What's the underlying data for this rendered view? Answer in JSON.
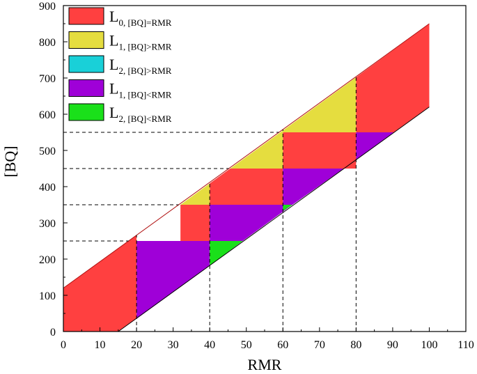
{
  "chart_data": {
    "type": "area",
    "xlabel": "RMR",
    "ylabel": "[BQ]",
    "xlim": [
      0,
      110
    ],
    "ylim": [
      0,
      900
    ],
    "xticks": [
      0,
      10,
      20,
      30,
      40,
      50,
      60,
      70,
      80,
      90,
      100,
      110
    ],
    "yticks": [
      0,
      100,
      200,
      300,
      400,
      500,
      600,
      700,
      800,
      900
    ],
    "grid": false,
    "legend_position": "top-left",
    "band": {
      "upper_line": [
        [
          0,
          120
        ],
        [
          100,
          850
        ]
      ],
      "lower_line": [
        [
          15,
          0
        ],
        [
          100,
          620
        ]
      ],
      "x_range": [
        0,
        100
      ]
    },
    "reference_lines": {
      "vertical_x": [
        20,
        40,
        60,
        80
      ],
      "horizontal_y": [
        250,
        350,
        450,
        550
      ]
    },
    "series": [
      {
        "name": "L0, [BQ]=RMR",
        "label_main": "L",
        "label_sub": "0, [BQ]=RMR",
        "color": "#ff4040",
        "regions": [
          [
            [
              0,
              120
            ],
            [
              20,
              266
            ],
            [
              20,
              35
            ],
            [
              15,
              0
            ],
            [
              0,
              0
            ]
          ],
          [
            [
              20,
              266
            ],
            [
              20,
              250
            ],
            [
              32,
              250
            ],
            [
              32,
              350
            ],
            [
              40,
              350
            ],
            [
              40,
              250
            ],
            [
              20,
              250
            ]
          ],
          [
            [
              40,
              350
            ],
            [
              40,
              409
            ],
            [
              45.6,
              450
            ],
            [
              60,
              450
            ],
            [
              60,
              350
            ]
          ],
          [
            [
              60,
              450
            ],
            [
              60,
              550
            ],
            [
              80,
              550
            ],
            [
              80,
              450
            ],
            [
              76.6,
              450
            ]
          ],
          [
            [
              80,
              702
            ],
            [
              100,
              850
            ],
            [
              100,
              620
            ],
            [
              80,
              474
            ]
          ]
        ]
      },
      {
        "name": "L1, [BQ]>RMR",
        "label_main": "L",
        "label_sub": "1, [BQ]>RMR",
        "color": "#e5dd3f",
        "regions": [
          [
            [
              32,
              350
            ],
            [
              40,
              350
            ],
            [
              40,
              409
            ]
          ],
          [
            [
              45.6,
              450
            ],
            [
              60,
              450
            ],
            [
              60,
              555
            ]
          ],
          [
            [
              60,
              555
            ],
            [
              60,
              550
            ],
            [
              80,
              550
            ],
            [
              80,
              702
            ]
          ]
        ]
      },
      {
        "name": "L2, [BQ]>RMR",
        "label_main": "L",
        "label_sub": "2, [BQ]>RMR",
        "color": "#19d0d8",
        "regions": []
      },
      {
        "name": "L1, [BQ]<RMR",
        "label_main": "L",
        "label_sub": "1, [BQ]<RMR",
        "color": "#9f00d8",
        "regions": [
          [
            [
              20,
              250
            ],
            [
              40,
              250
            ],
            [
              40,
              182
            ],
            [
              20,
              35
            ]
          ],
          [
            [
              40,
              350
            ],
            [
              40,
              250
            ],
            [
              49,
              250
            ],
            [
              62.6,
              350
            ]
          ],
          [
            [
              60,
              450
            ],
            [
              76.6,
              450
            ],
            [
              62.6,
              350
            ],
            [
              60,
              350
            ]
          ],
          [
            [
              80,
              550
            ],
            [
              90.4,
              550
            ],
            [
              80,
              474
            ]
          ]
        ]
      },
      {
        "name": "L2, [BQ]<RMR",
        "label_main": "L",
        "label_sub": "2, [BQ]<RMR",
        "color": "#1ae01a",
        "regions": [
          [
            [
              40,
              250
            ],
            [
              49,
              250
            ],
            [
              40,
              182
            ]
          ],
          [
            [
              60,
              350
            ],
            [
              62.6,
              350
            ],
            [
              60,
              333
            ]
          ]
        ]
      }
    ]
  }
}
